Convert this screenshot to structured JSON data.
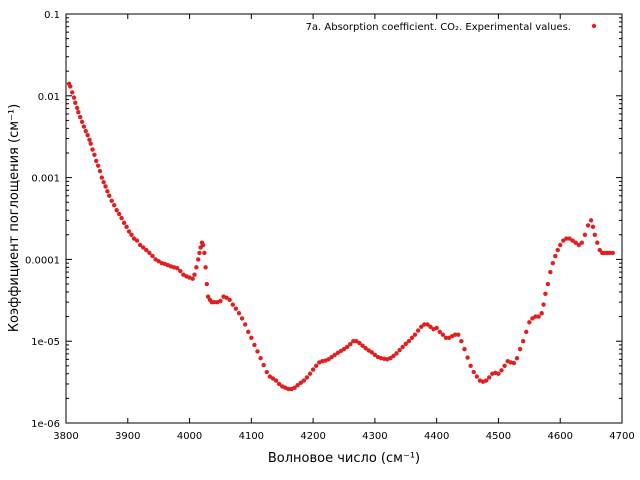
{
  "chart_data": {
    "type": "scatter",
    "legend": {
      "label": "7a. Absorption coefficient. CO₂. Experimental values.",
      "placement": "top-right"
    },
    "xlabel": "Волновое число (см⁻¹)",
    "ylabel": "Коэффициент поглощения (см⁻¹)",
    "xlim": [
      3800,
      4700
    ],
    "ylim": [
      1e-06,
      0.1
    ],
    "yscale": "log",
    "grid": false,
    "x_ticks": [
      "3800",
      "3900",
      "4000",
      "4100",
      "4200",
      "4300",
      "4400",
      "4500",
      "4600",
      "4700"
    ],
    "y_ticks": [
      "1e-06",
      "1e-05",
      "0.0001",
      "0.001",
      "0.01",
      "0.1"
    ],
    "series": [
      {
        "name": "7a. Absorption coefficient. CO₂. Experimental values.",
        "color": "#e02020",
        "points": [
          [
            3805,
            0.014
          ],
          [
            3807,
            0.013
          ],
          [
            3810,
            0.011
          ],
          [
            3813,
            0.0095
          ],
          [
            3815,
            0.0082
          ],
          [
            3818,
            0.0071
          ],
          [
            3820,
            0.0063
          ],
          [
            3823,
            0.0055
          ],
          [
            3826,
            0.0048
          ],
          [
            3829,
            0.0042
          ],
          [
            3832,
            0.0037
          ],
          [
            3835,
            0.0033
          ],
          [
            3838,
            0.0029
          ],
          [
            3840,
            0.0026
          ],
          [
            3843,
            0.0022
          ],
          [
            3846,
            0.0019
          ],
          [
            3849,
            0.0016
          ],
          [
            3852,
            0.0014
          ],
          [
            3855,
            0.0012
          ],
          [
            3858,
            0.001
          ],
          [
            3861,
            0.00088
          ],
          [
            3864,
            0.00078
          ],
          [
            3867,
            0.00068
          ],
          [
            3870,
            0.0006
          ],
          [
            3874,
            0.00052
          ],
          [
            3878,
            0.00046
          ],
          [
            3882,
            0.0004
          ],
          [
            3886,
            0.00036
          ],
          [
            3890,
            0.00032
          ],
          [
            3894,
            0.00028
          ],
          [
            3898,
            0.00025
          ],
          [
            3902,
            0.00022
          ],
          [
            3906,
            0.0002
          ],
          [
            3910,
            0.00018
          ],
          [
            3915,
            0.00017
          ],
          [
            3920,
            0.00015
          ],
          [
            3925,
            0.00014
          ],
          [
            3930,
            0.00013
          ],
          [
            3935,
            0.00012
          ],
          [
            3940,
            0.00011
          ],
          [
            3945,
            0.0001
          ],
          [
            3950,
            9.5e-05
          ],
          [
            3955,
            9e-05
          ],
          [
            3960,
            8.8e-05
          ],
          [
            3965,
            8.5e-05
          ],
          [
            3970,
            8.2e-05
          ],
          [
            3975,
            8e-05
          ],
          [
            3980,
            7.8e-05
          ],
          [
            3985,
            7.2e-05
          ],
          [
            3990,
            6.5e-05
          ],
          [
            3995,
            6.2e-05
          ],
          [
            4000,
            6e-05
          ],
          [
            4005,
            5.8e-05
          ],
          [
            4008,
            6.5e-05
          ],
          [
            4011,
            8e-05
          ],
          [
            4014,
            0.0001
          ],
          [
            4016,
            0.00012
          ],
          [
            4018,
            0.00014
          ],
          [
            4020,
            0.00016
          ],
          [
            4022,
            0.00015
          ],
          [
            4024,
            0.00012
          ],
          [
            4026,
            8e-05
          ],
          [
            4028,
            5e-05
          ],
          [
            4030,
            3.5e-05
          ],
          [
            4033,
            3.2e-05
          ],
          [
            4036,
            3e-05
          ],
          [
            4040,
            3e-05
          ],
          [
            4045,
            3e-05
          ],
          [
            4050,
            3.1e-05
          ],
          [
            4055,
            3.5e-05
          ],
          [
            4060,
            3.4e-05
          ],
          [
            4065,
            3.2e-05
          ],
          [
            4070,
            2.8e-05
          ],
          [
            4075,
            2.5e-05
          ],
          [
            4080,
            2.2e-05
          ],
          [
            4085,
            1.9e-05
          ],
          [
            4090,
            1.6e-05
          ],
          [
            4095,
            1.3e-05
          ],
          [
            4100,
            1.1e-05
          ],
          [
            4105,
            9e-06
          ],
          [
            4110,
            7.5e-06
          ],
          [
            4115,
            6.2e-06
          ],
          [
            4120,
            5.1e-06
          ],
          [
            4125,
            4.2e-06
          ],
          [
            4130,
            3.7e-06
          ],
          [
            4135,
            3.5e-06
          ],
          [
            4140,
            3.3e-06
          ],
          [
            4145,
            3e-06
          ],
          [
            4150,
            2.8e-06
          ],
          [
            4155,
            2.7e-06
          ],
          [
            4160,
            2.6e-06
          ],
          [
            4165,
            2.6e-06
          ],
          [
            4170,
            2.7e-06
          ],
          [
            4175,
            2.9e-06
          ],
          [
            4180,
            3.1e-06
          ],
          [
            4185,
            3.3e-06
          ],
          [
            4190,
            3.6e-06
          ],
          [
            4195,
            4e-06
          ],
          [
            4200,
            4.5e-06
          ],
          [
            4205,
            5e-06
          ],
          [
            4210,
            5.5e-06
          ],
          [
            4215,
            5.7e-06
          ],
          [
            4220,
            5.8e-06
          ],
          [
            4225,
            6e-06
          ],
          [
            4230,
            6.4e-06
          ],
          [
            4235,
            6.8e-06
          ],
          [
            4240,
            7.2e-06
          ],
          [
            4245,
            7.6e-06
          ],
          [
            4250,
            8e-06
          ],
          [
            4255,
            8.5e-06
          ],
          [
            4260,
            9.2e-06
          ],
          [
            4265,
            1e-05
          ],
          [
            4270,
            1e-05
          ],
          [
            4275,
            9.5e-06
          ],
          [
            4280,
            8.8e-06
          ],
          [
            4285,
            8.2e-06
          ],
          [
            4290,
            7.7e-06
          ],
          [
            4295,
            7.3e-06
          ],
          [
            4300,
            6.8e-06
          ],
          [
            4305,
            6.4e-06
          ],
          [
            4310,
            6.2e-06
          ],
          [
            4315,
            6.1e-06
          ],
          [
            4320,
            6e-06
          ],
          [
            4325,
            6.2e-06
          ],
          [
            4330,
            6.6e-06
          ],
          [
            4335,
            7.1e-06
          ],
          [
            4340,
            7.8e-06
          ],
          [
            4345,
            8.5e-06
          ],
          [
            4350,
            9.3e-06
          ],
          [
            4355,
            1e-05
          ],
          [
            4360,
            1.1e-05
          ],
          [
            4365,
            1.2e-05
          ],
          [
            4370,
            1.35e-05
          ],
          [
            4375,
            1.5e-05
          ],
          [
            4380,
            1.6e-05
          ],
          [
            4385,
            1.6e-05
          ],
          [
            4390,
            1.5e-05
          ],
          [
            4395,
            1.4e-05
          ],
          [
            4400,
            1.45e-05
          ],
          [
            4405,
            1.3e-05
          ],
          [
            4410,
            1.2e-05
          ],
          [
            4415,
            1.1e-05
          ],
          [
            4420,
            1.1e-05
          ],
          [
            4425,
            1.15e-05
          ],
          [
            4430,
            1.2e-05
          ],
          [
            4435,
            1.2e-05
          ],
          [
            4440,
            1e-05
          ],
          [
            4445,
            8e-06
          ],
          [
            4450,
            6.3e-06
          ],
          [
            4455,
            5e-06
          ],
          [
            4460,
            4.2e-06
          ],
          [
            4465,
            3.7e-06
          ],
          [
            4470,
            3.3e-06
          ],
          [
            4475,
            3.2e-06
          ],
          [
            4480,
            3.3e-06
          ],
          [
            4485,
            3.6e-06
          ],
          [
            4490,
            4e-06
          ],
          [
            4495,
            4.1e-06
          ],
          [
            4500,
            4e-06
          ],
          [
            4505,
            4.4e-06
          ],
          [
            4510,
            5e-06
          ],
          [
            4515,
            5.7e-06
          ],
          [
            4520,
            5.5e-06
          ],
          [
            4525,
            5.4e-06
          ],
          [
            4530,
            6.2e-06
          ],
          [
            4535,
            8e-06
          ],
          [
            4540,
            1e-05
          ],
          [
            4545,
            1.3e-05
          ],
          [
            4550,
            1.7e-05
          ],
          [
            4555,
            1.9e-05
          ],
          [
            4560,
            2e-05
          ],
          [
            4565,
            2e-05
          ],
          [
            4570,
            2.2e-05
          ],
          [
            4573,
            2.8e-05
          ],
          [
            4576,
            3.8e-05
          ],
          [
            4580,
            5e-05
          ],
          [
            4584,
            7e-05
          ],
          [
            4588,
            9e-05
          ],
          [
            4592,
            0.00011
          ],
          [
            4596,
            0.00013
          ],
          [
            4600,
            0.00015
          ],
          [
            4605,
            0.00017
          ],
          [
            4610,
            0.00018
          ],
          [
            4615,
            0.00018
          ],
          [
            4620,
            0.00017
          ],
          [
            4625,
            0.00016
          ],
          [
            4630,
            0.00015
          ],
          [
            4635,
            0.00016
          ],
          [
            4640,
            0.0002
          ],
          [
            4645,
            0.00026
          ],
          [
            4650,
            0.0003
          ],
          [
            4653,
            0.00025
          ],
          [
            4656,
            0.0002
          ],
          [
            4660,
            0.00016
          ],
          [
            4664,
            0.00013
          ],
          [
            4668,
            0.00012
          ],
          [
            4672,
            0.00012
          ],
          [
            4676,
            0.00012
          ],
          [
            4680,
            0.00012
          ],
          [
            4685,
            0.00012
          ]
        ]
      }
    ]
  }
}
